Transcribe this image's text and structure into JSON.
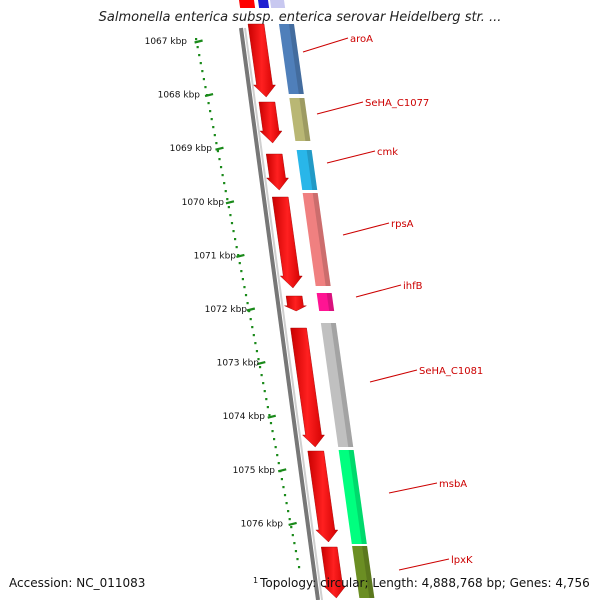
{
  "title": "Salmonella enterica subsp. enterica serovar Heidelberg str. ...",
  "footer": {
    "accession": "Accession: NC_011083",
    "start_marker": "1",
    "summary": "Topology: circular; Length: 4,888,768 bp; Genes: 4,756"
  },
  "ticks": [
    "1067 kbp",
    "1068 kbp",
    "1069 kbp",
    "1070 kbp",
    "1071 kbp",
    "1072 kbp",
    "1073 kbp",
    "1074 kbp",
    "1075 kbp",
    "1076 kbp"
  ],
  "genes": [
    {
      "label": "aroA",
      "color": "#4f7fba"
    },
    {
      "label": "SeHA_C1077",
      "color": "#b9b774"
    },
    {
      "label": "cmk",
      "color": "#29b6e9"
    },
    {
      "label": "rpsA",
      "color": "#f08080"
    },
    {
      "label": "ihfB",
      "color": "#ff1493"
    },
    {
      "label": "SeHA_C1081",
      "color": "#c0c0c0"
    },
    {
      "label": "msbA",
      "color": "#00ff7f"
    },
    {
      "label": "lpxK",
      "color": "#6b8e23"
    }
  ],
  "colors": {
    "cds": "#ff0000",
    "tick": "#1a8a1a",
    "label": "#cc0000",
    "backbone": "#777777"
  }
}
